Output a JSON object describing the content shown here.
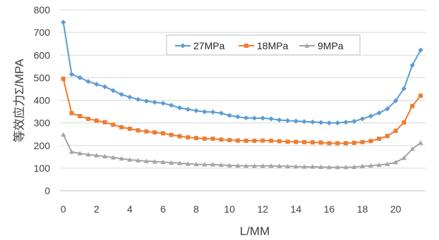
{
  "chart_data": {
    "type": "line",
    "title": "",
    "xlabel": "L/MM",
    "ylabel": "等效应力Σ/MPA",
    "xlim": [
      -0.2,
      21.8
    ],
    "ylim": [
      0,
      800
    ],
    "x_ticks": [
      0,
      2,
      4,
      6,
      8,
      10,
      12,
      14,
      16,
      18,
      20
    ],
    "y_ticks": [
      0,
      100,
      200,
      300,
      400,
      500,
      600,
      700,
      800
    ],
    "grid": "horizontal",
    "legend_position": "top-center",
    "x": [
      0,
      0.5,
      1,
      1.5,
      2,
      2.5,
      3,
      3.5,
      4,
      4.5,
      5,
      5.5,
      6,
      6.5,
      7,
      7.5,
      8,
      8.5,
      9,
      9.5,
      10,
      10.5,
      11,
      11.5,
      12,
      12.5,
      13,
      13.5,
      14,
      14.5,
      15,
      15.5,
      16,
      16.5,
      17,
      17.5,
      18,
      18.5,
      19,
      19.5,
      20,
      20.5,
      21,
      21.5
    ],
    "series": [
      {
        "name": "27MPa",
        "color": "#5b9bd5",
        "marker": "diamond",
        "values": [
          745,
          515,
          500,
          483,
          471,
          460,
          443,
          426,
          414,
          404,
          397,
          391,
          387,
          378,
          367,
          360,
          354,
          349,
          348,
          343,
          333,
          327,
          322,
          321,
          321,
          318,
          313,
          310,
          308,
          306,
          304,
          302,
          300,
          300,
          303,
          307,
          318,
          330,
          344,
          362,
          398,
          452,
          555,
          622
        ]
      },
      {
        "name": "18MPa",
        "color": "#ed7d31",
        "marker": "square",
        "values": [
          495,
          343,
          330,
          318,
          310,
          303,
          292,
          281,
          274,
          267,
          262,
          258,
          254,
          247,
          241,
          236,
          233,
          230,
          230,
          226,
          224,
          222,
          221,
          221,
          222,
          221,
          219,
          217,
          216,
          215,
          214,
          213,
          210,
          210,
          210,
          212,
          215,
          220,
          230,
          242,
          265,
          302,
          375,
          420
        ]
      },
      {
        "name": "9MPa",
        "color": "#a5a5a5",
        "marker": "triangle",
        "values": [
          248,
          172,
          165,
          160,
          156,
          152,
          147,
          142,
          137,
          134,
          131,
          129,
          127,
          124,
          122,
          119,
          117,
          116,
          116,
          114,
          112,
          111,
          110,
          110,
          110,
          110,
          109,
          108,
          107,
          106,
          106,
          105,
          104,
          104,
          104,
          105,
          108,
          111,
          114,
          118,
          126,
          145,
          185,
          212
        ]
      }
    ]
  }
}
